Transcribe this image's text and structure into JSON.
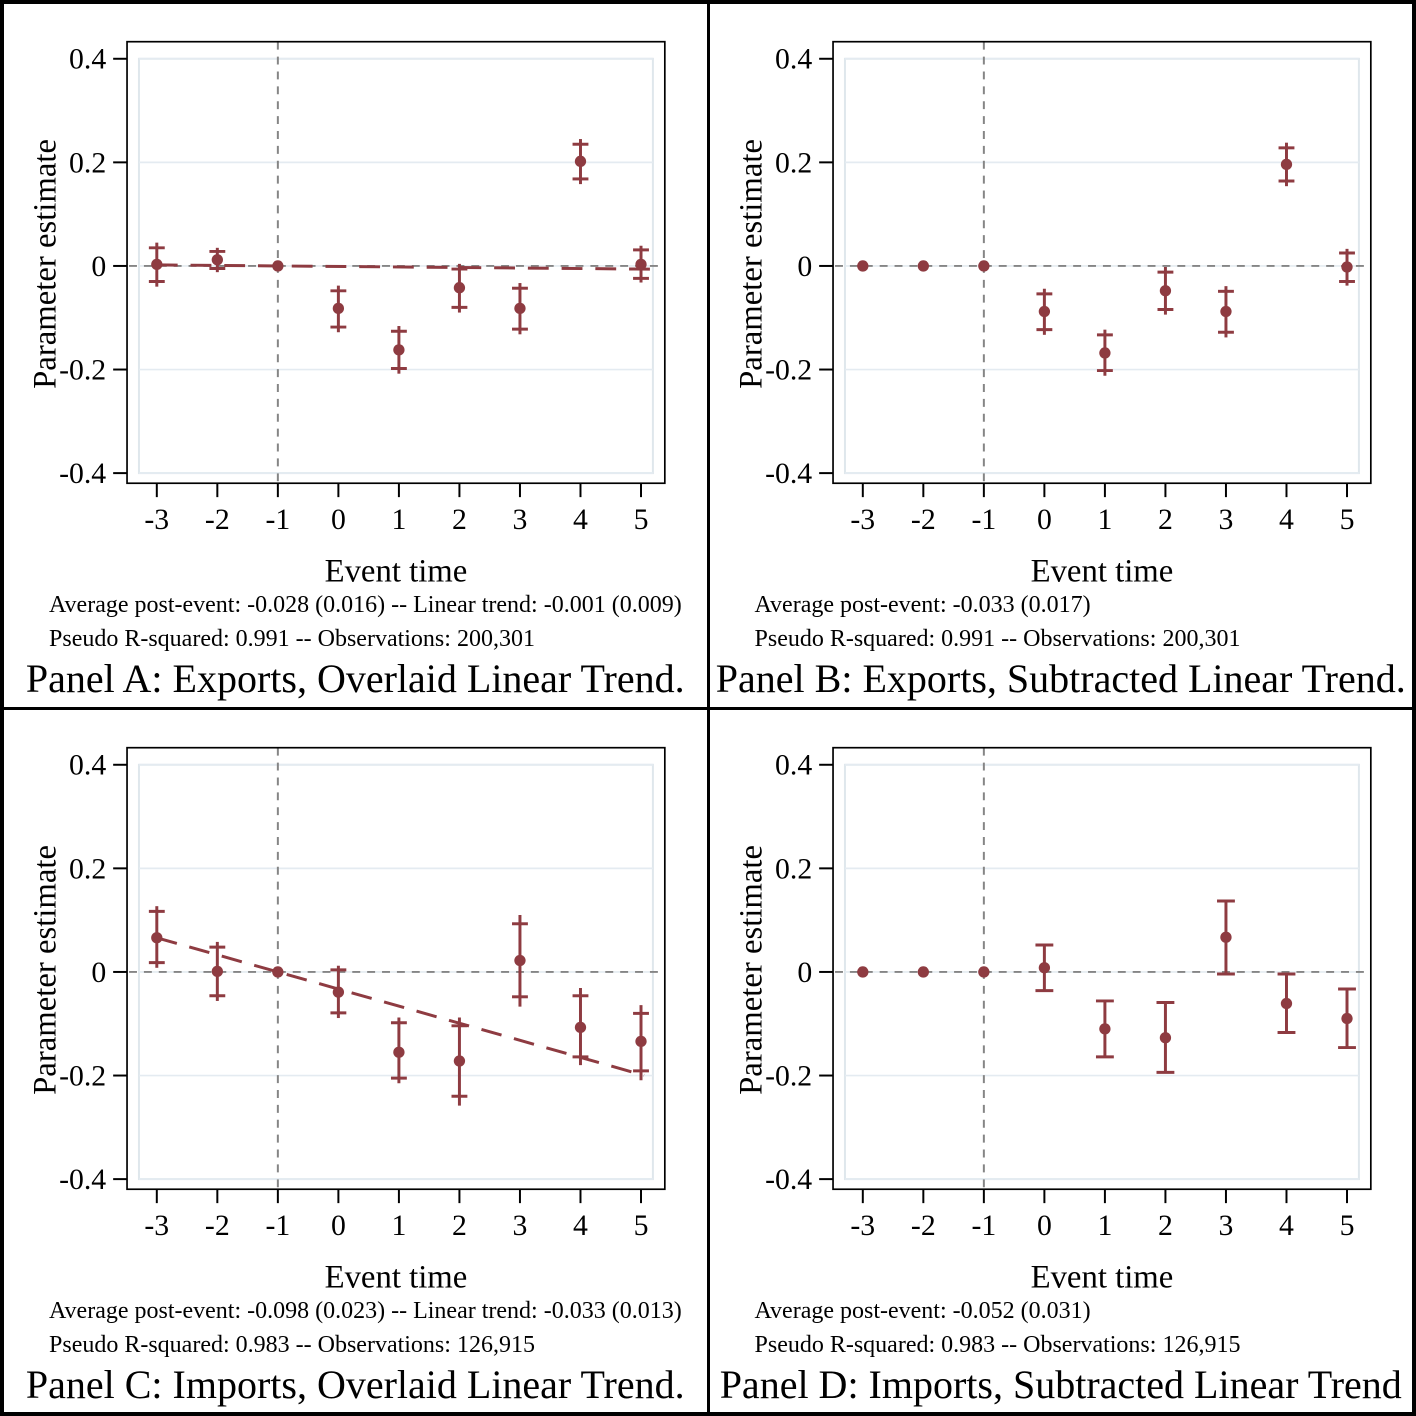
{
  "colors": {
    "marker": "#8e3b41",
    "reference": "#858585",
    "grid": "#e4ebf1",
    "plot_border": "#dfe7ec",
    "axis": "#000000"
  },
  "chart_data": [
    {
      "type": "scatter",
      "panel": "A",
      "title": "Panel A: Exports, Overlaid Linear Trend.",
      "notes": [
        "Average post-event: -0.028 (0.016) -- Linear trend: -0.001 (0.009)",
        "Pseudo R-squared: 0.991 -- Observations: 200,301"
      ],
      "xlabel": "Event time",
      "ylabel": "Parameter estimate",
      "xticks": [
        -3,
        -2,
        -1,
        0,
        1,
        2,
        3,
        4,
        5
      ],
      "yticks": [
        0.4,
        0.2,
        0,
        -0.2,
        -0.4
      ],
      "ytick_labels": [
        "0.4",
        "0.2",
        "0",
        "-0.2",
        "-0.4"
      ],
      "ylim": [
        -0.43,
        0.43
      ],
      "grid": true,
      "ref_y": 0,
      "ref_x": -1,
      "trend": {
        "slope": -0.001,
        "through_x": -1,
        "x_start": -3,
        "x_end": 5.35
      },
      "points": [
        {
          "x": -3,
          "est": 0.003,
          "lo": -0.04,
          "hi": 0.045,
          "cap_lo": -0.03,
          "cap_hi": 0.035
        },
        {
          "x": -2,
          "est": 0.012,
          "lo": -0.012,
          "hi": 0.035,
          "cap_lo": -0.005,
          "cap_hi": 0.028
        },
        {
          "x": -1,
          "est": 0
        },
        {
          "x": 0,
          "est": -0.082,
          "lo": -0.128,
          "hi": -0.038,
          "cap_lo": -0.118,
          "cap_hi": -0.048
        },
        {
          "x": 1,
          "est": -0.162,
          "lo": -0.208,
          "hi": -0.116,
          "cap_lo": -0.198,
          "cap_hi": -0.126
        },
        {
          "x": 2,
          "est": -0.042,
          "lo": -0.09,
          "hi": 0.004,
          "cap_lo": -0.08,
          "cap_hi": -0.006
        },
        {
          "x": 3,
          "est": -0.082,
          "lo": -0.132,
          "hi": -0.033,
          "cap_lo": -0.122,
          "cap_hi": -0.043
        },
        {
          "x": 4,
          "est": 0.202,
          "lo": 0.158,
          "hi": 0.245,
          "cap_lo": 0.168,
          "cap_hi": 0.235
        },
        {
          "x": 5,
          "est": 0.003,
          "lo": -0.032,
          "hi": 0.039,
          "cap_lo": -0.024,
          "cap_hi": 0.031
        }
      ]
    },
    {
      "type": "scatter",
      "panel": "B",
      "title": "Panel B: Exports, Subtracted Linear Trend.",
      "notes": [
        "Average post-event: -0.033 (0.017)",
        "Pseudo R-squared: 0.991 -- Observations: 200,301"
      ],
      "xlabel": "Event time",
      "ylabel": "Parameter estimate",
      "xticks": [
        -3,
        -2,
        -1,
        0,
        1,
        2,
        3,
        4,
        5
      ],
      "yticks": [
        0.4,
        0.2,
        0,
        -0.2,
        -0.4
      ],
      "ytick_labels": [
        "0.4",
        "0.2",
        "0",
        "-0.2",
        "-0.4"
      ],
      "ylim": [
        -0.43,
        0.43
      ],
      "grid": true,
      "ref_y": 0,
      "ref_x": -1,
      "trend": null,
      "points": [
        {
          "x": -3,
          "est": 0
        },
        {
          "x": -2,
          "est": 0
        },
        {
          "x": -1,
          "est": 0
        },
        {
          "x": 0,
          "est": -0.088,
          "lo": -0.133,
          "hi": -0.044,
          "cap_lo": -0.123,
          "cap_hi": -0.054
        },
        {
          "x": 1,
          "est": -0.168,
          "lo": -0.212,
          "hi": -0.123,
          "cap_lo": -0.202,
          "cap_hi": -0.133
        },
        {
          "x": 2,
          "est": -0.048,
          "lo": -0.094,
          "hi": -0.002,
          "cap_lo": -0.084,
          "cap_hi": -0.012
        },
        {
          "x": 3,
          "est": -0.088,
          "lo": -0.138,
          "hi": -0.039,
          "cap_lo": -0.128,
          "cap_hi": -0.049
        },
        {
          "x": 4,
          "est": 0.196,
          "lo": 0.154,
          "hi": 0.238,
          "cap_lo": 0.164,
          "cap_hi": 0.228
        },
        {
          "x": 5,
          "est": -0.002,
          "lo": -0.038,
          "hi": 0.033,
          "cap_lo": -0.03,
          "cap_hi": 0.025
        }
      ]
    },
    {
      "type": "scatter",
      "panel": "C",
      "title": "Panel C: Imports, Overlaid Linear Trend.",
      "notes": [
        "Average post-event: -0.098 (0.023) -- Linear trend: -0.033 (0.013)",
        "Pseudo R-squared: 0.983 -- Observations: 126,915"
      ],
      "xlabel": "Event time",
      "ylabel": "Parameter estimate",
      "xticks": [
        -3,
        -2,
        -1,
        0,
        1,
        2,
        3,
        4,
        5
      ],
      "yticks": [
        0.4,
        0.2,
        0,
        -0.2,
        -0.4
      ],
      "ytick_labels": [
        "0.4",
        "0.2",
        "0",
        "-0.2",
        "-0.4"
      ],
      "ylim": [
        -0.43,
        0.43
      ],
      "grid": true,
      "ref_y": 0,
      "ref_x": -1,
      "trend": {
        "slope": -0.033,
        "through_x": -1,
        "x_start": -3,
        "x_end": 5.05
      },
      "points": [
        {
          "x": -3,
          "est": 0.066,
          "lo": 0.008,
          "hi": 0.127,
          "cap_lo": 0.018,
          "cap_hi": 0.117
        },
        {
          "x": -2,
          "est": 0.001,
          "lo": -0.056,
          "hi": 0.058,
          "cap_lo": -0.046,
          "cap_hi": 0.048
        },
        {
          "x": -1,
          "est": 0
        },
        {
          "x": 0,
          "est": -0.039,
          "lo": -0.089,
          "hi": 0.012,
          "cap_lo": -0.079,
          "cap_hi": 0.004
        },
        {
          "x": 1,
          "est": -0.155,
          "lo": -0.215,
          "hi": -0.088,
          "cap_lo": -0.205,
          "cap_hi": -0.098
        },
        {
          "x": 2,
          "est": -0.172,
          "lo": -0.258,
          "hi": -0.088,
          "cap_lo": -0.24,
          "cap_hi": -0.104
        },
        {
          "x": 3,
          "est": 0.022,
          "lo": -0.067,
          "hi": 0.11,
          "cap_lo": -0.048,
          "cap_hi": 0.093
        },
        {
          "x": 4,
          "est": -0.107,
          "lo": -0.18,
          "hi": -0.031,
          "cap_lo": -0.164,
          "cap_hi": -0.046
        },
        {
          "x": 5,
          "est": -0.134,
          "lo": -0.209,
          "hi": -0.064,
          "cap_lo": -0.191,
          "cap_hi": -0.08
        }
      ]
    },
    {
      "type": "scatter",
      "panel": "D",
      "title": "Panel D: Imports, Subtracted Linear Trend",
      "notes": [
        "Average post-event: -0.052 (0.031)",
        "Pseudo R-squared: 0.983 -- Observations: 126,915"
      ],
      "xlabel": "Event time",
      "ylabel": "Parameter estimate",
      "xticks": [
        -3,
        -2,
        -1,
        0,
        1,
        2,
        3,
        4,
        5
      ],
      "yticks": [
        0.4,
        0.2,
        0,
        -0.2,
        -0.4
      ],
      "ytick_labels": [
        "0.4",
        "0.2",
        "0",
        "-0.2",
        "-0.4"
      ],
      "ylim": [
        -0.43,
        0.43
      ],
      "grid": true,
      "ref_y": 0,
      "ref_x": -1,
      "trend": null,
      "points": [
        {
          "x": -3,
          "est": 0
        },
        {
          "x": -2,
          "est": 0
        },
        {
          "x": -1,
          "est": 0
        },
        {
          "x": 0,
          "est": 0.008,
          "lo": -0.036,
          "hi": 0.052
        },
        {
          "x": 1,
          "est": -0.11,
          "lo": -0.164,
          "hi": -0.056
        },
        {
          "x": 2,
          "est": -0.127,
          "lo": -0.194,
          "hi": -0.059
        },
        {
          "x": 3,
          "est": 0.067,
          "lo": -0.004,
          "hi": 0.137
        },
        {
          "x": 4,
          "est": -0.061,
          "lo": -0.117,
          "hi": -0.004
        },
        {
          "x": 5,
          "est": -0.09,
          "lo": -0.146,
          "hi": -0.033
        }
      ]
    }
  ]
}
